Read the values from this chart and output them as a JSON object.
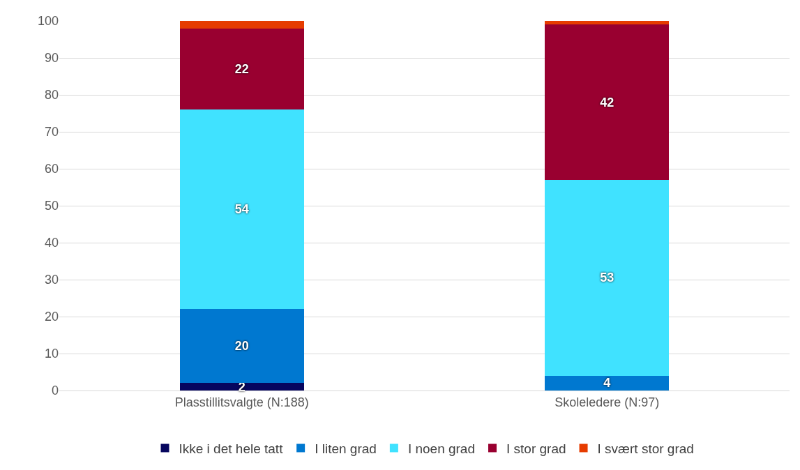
{
  "chart_data": {
    "type": "bar",
    "stacked": true,
    "categories": [
      "Plasstillitsvalgte (N:188)",
      "Skoleledere (N:97)"
    ],
    "series": [
      {
        "name": "Ikke i det hele tatt",
        "color": "#06065e",
        "values": [
          2,
          0
        ],
        "value_labels": [
          "2",
          null
        ]
      },
      {
        "name": "I liten grad",
        "color": "#0078d0",
        "values": [
          20,
          4
        ],
        "value_labels": [
          "20",
          "4"
        ]
      },
      {
        "name": "I noen grad",
        "color": "#40e2ff",
        "values": [
          54,
          53
        ],
        "value_labels": [
          "54",
          "53"
        ]
      },
      {
        "name": "I stor grad",
        "color": "#990030",
        "values": [
          22,
          42
        ],
        "value_labels": [
          "22",
          "42"
        ]
      },
      {
        "name": "I svært stor grad",
        "color": "#e63c00",
        "values": [
          2,
          1
        ],
        "value_labels": [
          null,
          null
        ]
      }
    ],
    "ylim": [
      0,
      100
    ],
    "yticks": [
      0,
      10,
      20,
      30,
      40,
      50,
      60,
      70,
      80,
      90,
      100
    ],
    "grid": "y",
    "legend": "bottom"
  }
}
